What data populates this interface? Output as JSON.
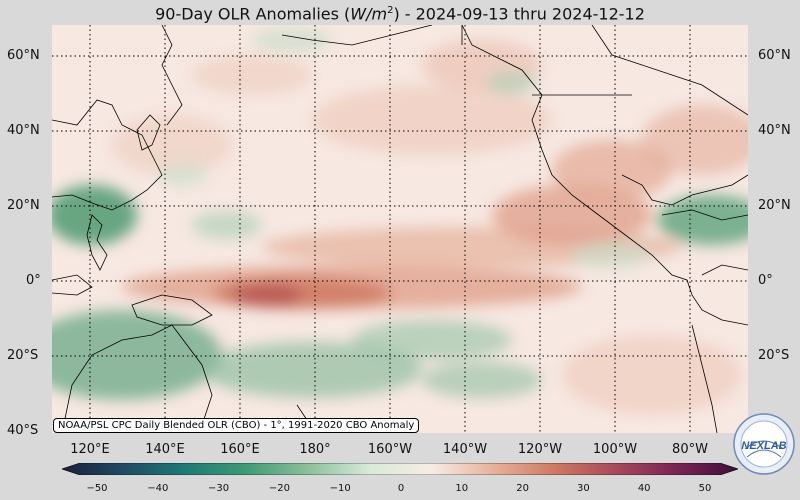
{
  "title": {
    "prefix": "90-Day OLR Anomalies (",
    "unit": "W/m",
    "unit_sup": "2",
    "suffix": ") - 2024-09-13 thru 2024-12-12"
  },
  "credit": "NOAA/PSL CPC Daily Blended OLR (CBO) - 1°, 1991-2020 CBO Anomaly",
  "logo_text": "NEXLAB",
  "lat_labels": [
    "60°N",
    "40°N",
    "20°N",
    "0°",
    "20°S",
    "40°S"
  ],
  "lon_labels": [
    "120°E",
    "140°E",
    "160°E",
    "180°",
    "160°W",
    "140°W",
    "120°W",
    "100°W",
    "80°W"
  ],
  "colorbar": {
    "ticks": [
      "−50",
      "−40",
      "−30",
      "−20",
      "−10",
      "0",
      "10",
      "20",
      "30",
      "40",
      "50"
    ],
    "colors": [
      "#1b1f3a",
      "#214a63",
      "#1f7a75",
      "#3f9a76",
      "#8cc09a",
      "#d8e9da",
      "#f7ece6",
      "#e6b39e",
      "#cf7a63",
      "#a84a5c",
      "#7a2454",
      "#3d0f3a"
    ]
  },
  "map_colors": {
    "ocean_base": "#f6e6df",
    "positive": "#d7826b",
    "negative": "#5fa07d",
    "coast": "#000000"
  }
}
